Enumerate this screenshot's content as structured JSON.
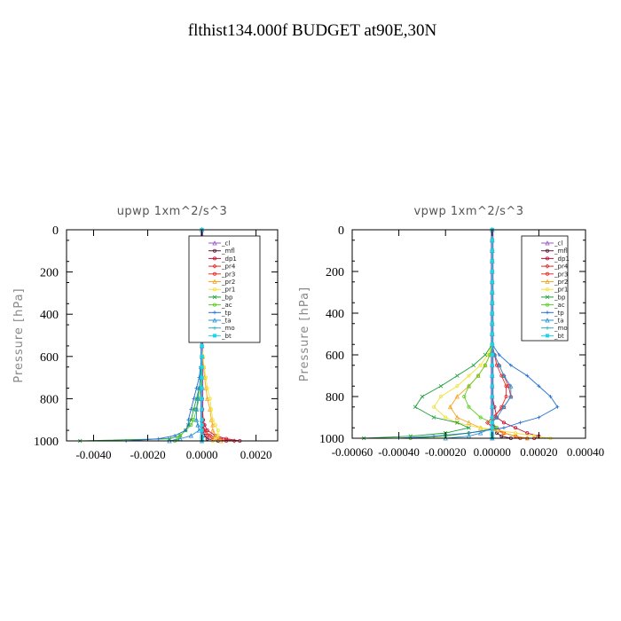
{
  "figure": {
    "title": "flthist134.000f  BUDGET at90E,30N"
  },
  "legend_entries": [
    "_cl",
    "_mfl",
    "_dp1",
    "_pr4",
    "_pr3",
    "_pr2",
    "_pr1",
    "_bp",
    "_ac",
    "_tp",
    "_ta",
    "_mo",
    "_bt"
  ],
  "colors": {
    "_cl": "#9b59c7",
    "_mfl": "#5a1a3a",
    "_dp1": "#c0103a",
    "_pr4": "#e02828",
    "_pr3": "#ee2a2a",
    "_pr2": "#f5a623",
    "_pr1": "#f2e23a",
    "_bp": "#1c9e3a",
    "_ac": "#5ad020",
    "_tp": "#1f6fd6",
    "_ta": "#2a8fd0",
    "_mo": "#2ab0c0",
    "_bt": "#19d7e8"
  },
  "chart_data": [
    {
      "type": "line",
      "title": "upwp   1xm^2/s^3",
      "ylabel": "Pressure  [hPa]",
      "xlabel": "",
      "xlim": [
        -0.005,
        0.0028
      ],
      "ylim": [
        1000,
        0
      ],
      "y_inverted": true,
      "xticks": [
        -0.004,
        -0.002,
        0.0,
        0.002
      ],
      "xtick_labels": [
        "-0.0040",
        "-0.0020",
        "0.0000",
        "0.0020"
      ],
      "yticks": [
        0,
        200,
        400,
        600,
        800,
        1000
      ],
      "ytick_labels": [
        "0",
        "200",
        "400",
        "600",
        "800",
        "1000"
      ],
      "legend_position": "top-right",
      "grid": false,
      "y": [
        0,
        50,
        100,
        150,
        200,
        250,
        300,
        350,
        400,
        450,
        500,
        550,
        600,
        650,
        700,
        750,
        800,
        850,
        900,
        925,
        950,
        975,
        990,
        1000
      ],
      "series": [
        {
          "name": "_cl",
          "values": [
            0,
            0,
            0,
            0,
            0,
            0,
            0,
            0,
            0,
            0,
            0,
            0,
            0,
            0,
            0,
            0,
            0,
            0,
            0,
            0,
            0,
            0,
            0,
            0
          ]
        },
        {
          "name": "_mfl",
          "values": [
            0,
            0,
            0,
            0,
            0,
            0,
            0,
            0,
            0,
            0,
            0,
            0,
            0,
            0,
            0,
            0,
            0,
            0,
            0,
            3e-05,
            5e-05,
            0.0001,
            0.0002,
            0.0006
          ]
        },
        {
          "name": "_dp1",
          "values": [
            0,
            0,
            0,
            0,
            0,
            0,
            0,
            0,
            0,
            0,
            0,
            0,
            0,
            0,
            0,
            0,
            1e-05,
            2e-05,
            5e-05,
            0.0001,
            0.0002,
            0.0005,
            0.0009,
            0.0014
          ]
        },
        {
          "name": "_pr4",
          "values": [
            0,
            0,
            0,
            0,
            0,
            0,
            0,
            0,
            0,
            0,
            0,
            0,
            0,
            0,
            0,
            0,
            0,
            0,
            2e-05,
            5e-05,
            0.0001,
            0.0003,
            0.0007,
            0.0012
          ]
        },
        {
          "name": "_pr3",
          "values": [
            0,
            0,
            0,
            0,
            0,
            0,
            0,
            0,
            0,
            0,
            0,
            0,
            0,
            0,
            0,
            0,
            0,
            0,
            1e-05,
            3e-05,
            8e-05,
            0.0002,
            0.0004,
            0.0009
          ]
        },
        {
          "name": "_pr2",
          "values": [
            0,
            0,
            0,
            0,
            0,
            0,
            0,
            0,
            0,
            0,
            0,
            0,
            3e-05,
            6e-05,
            0.0001,
            0.00015,
            0.0002,
            0.0003,
            0.00035,
            0.0004,
            0.0004,
            0.0005,
            0.0006,
            0.0007
          ]
        },
        {
          "name": "_pr1",
          "values": [
            0,
            0,
            0,
            0,
            0,
            0,
            0,
            0,
            0,
            0,
            0,
            0,
            4e-05,
            8e-05,
            0.00015,
            0.0002,
            0.0003,
            0.00035,
            0.0004,
            0.0005,
            0.0006,
            0.0006,
            0.0005,
            0.0004
          ]
        },
        {
          "name": "_bp",
          "values": [
            0,
            0,
            0,
            0,
            0,
            0,
            0,
            0,
            0,
            0,
            0,
            0,
            0,
            0,
            -5e-05,
            -0.0001,
            -0.0002,
            -0.0003,
            -0.0004,
            -0.0005,
            -0.0006,
            -0.0008,
            -0.0012,
            -0.0045
          ]
        },
        {
          "name": "_ac",
          "values": [
            0,
            0,
            0,
            0,
            0,
            0,
            0,
            0,
            0,
            0,
            0,
            0,
            0,
            0,
            -2e-05,
            -5e-05,
            -0.0001,
            -0.0002,
            -0.0003,
            -0.0004,
            -0.0006,
            -0.0008,
            -0.0009,
            -0.001
          ]
        },
        {
          "name": "_tp",
          "values": [
            0,
            0,
            0,
            0,
            0,
            0,
            0,
            0,
            0,
            0,
            0,
            0,
            0,
            -5e-05,
            -0.0001,
            -0.0002,
            -0.0003,
            -0.0004,
            -0.0005,
            -0.0005,
            -0.0006,
            -0.001,
            -0.0016,
            -0.0028
          ]
        },
        {
          "name": "_ta",
          "values": [
            0,
            0,
            0,
            0,
            0,
            0,
            0,
            0,
            0,
            0,
            0,
            0,
            0,
            -3e-05,
            -6e-05,
            -0.0001,
            -0.00015,
            -0.0002,
            -0.0002,
            -0.00015,
            -0.0001,
            -0.0004,
            -0.0008,
            -0.0012
          ]
        },
        {
          "name": "_mo",
          "values": [
            0,
            0,
            0,
            0,
            0,
            0,
            0,
            0,
            0,
            0,
            0,
            0,
            0,
            0,
            0,
            0,
            0,
            0,
            0,
            0,
            0,
            0,
            0,
            0
          ]
        },
        {
          "name": "_bt",
          "values": [
            0,
            0,
            0,
            0,
            0,
            0,
            0,
            0,
            0,
            0,
            0,
            0,
            0,
            0,
            0,
            0,
            0,
            0,
            0,
            0,
            0,
            0,
            0,
            0
          ]
        }
      ]
    },
    {
      "type": "line",
      "title": "vpwp   1xm^2/s^3",
      "ylabel": "Pressure  [hPa]",
      "xlabel": "",
      "xlim": [
        -0.0006,
        0.0004
      ],
      "ylim": [
        1000,
        0
      ],
      "y_inverted": true,
      "xticks": [
        -0.0006,
        -0.0004,
        -0.0002,
        0.0,
        0.0002,
        0.0004
      ],
      "xtick_labels": [
        "-0.00060",
        "-0.00040",
        "-0.00020",
        "0.00000",
        "0.00020",
        "0.00040"
      ],
      "yticks": [
        0,
        200,
        400,
        600,
        800,
        1000
      ],
      "ytick_labels": [
        "0",
        "200",
        "400",
        "600",
        "800",
        "1000"
      ],
      "legend_position": "top-right",
      "grid": false,
      "y": [
        0,
        50,
        100,
        150,
        200,
        250,
        300,
        350,
        400,
        450,
        500,
        550,
        600,
        650,
        700,
        750,
        800,
        850,
        900,
        925,
        950,
        975,
        990,
        1000
      ],
      "series": [
        {
          "name": "_cl",
          "values": [
            0,
            0,
            0,
            0,
            0,
            0,
            0,
            0,
            0,
            0,
            0,
            0,
            0,
            0,
            0,
            0,
            0,
            0,
            0,
            0,
            0,
            0,
            0,
            0
          ]
        },
        {
          "name": "_mfl",
          "values": [
            0,
            0,
            0,
            0,
            0,
            0,
            0,
            0,
            0,
            0,
            0,
            0,
            0,
            0,
            0,
            0,
            0,
            0,
            0,
            0,
            1e-05,
            2e-05,
            4e-05,
            8e-05
          ]
        },
        {
          "name": "_dp1",
          "values": [
            0,
            0,
            0,
            0,
            0,
            0,
            0,
            0,
            0,
            0,
            0,
            0,
            0,
            0,
            0,
            0,
            0,
            1e-05,
            2e-05,
            5e-05,
            0.0001,
            0.00015,
            0.0002,
            0.00018
          ]
        },
        {
          "name": "_pr4",
          "values": [
            0,
            0,
            0,
            0,
            0,
            0,
            0,
            0,
            0,
            0,
            0,
            0,
            1e-05,
            3e-05,
            5e-05,
            7e-05,
            8e-05,
            5e-05,
            0,
            -2e-05,
            0,
            5e-05,
            0.0001,
            0.00015
          ]
        },
        {
          "name": "_pr3",
          "values": [
            0,
            0,
            0,
            0,
            0,
            0,
            0,
            0,
            0,
            0,
            0,
            0,
            1e-05,
            2e-05,
            4e-05,
            6e-05,
            6e-05,
            4e-05,
            1e-05,
            0,
            2e-05,
            5e-05,
            0.0001,
            0.00012
          ]
        },
        {
          "name": "_pr2",
          "values": [
            0,
            0,
            0,
            0,
            0,
            0,
            0,
            0,
            0,
            0,
            0,
            0,
            -1e-05,
            -3e-05,
            -6e-05,
            -0.0001,
            -0.00015,
            -0.00018,
            -0.00015,
            -0.0001,
            -5e-05,
            5e-05,
            0.0001,
            0.00015
          ]
        },
        {
          "name": "_pr1",
          "values": [
            0,
            0,
            0,
            0,
            0,
            0,
            0,
            0,
            0,
            0,
            0,
            0,
            -2e-05,
            -5e-05,
            -0.0001,
            -0.00015,
            -0.00022,
            -0.00025,
            -0.0002,
            -0.00015,
            -5e-05,
            0.0001,
            0.00018,
            0.00025
          ]
        },
        {
          "name": "_bp",
          "values": [
            0,
            0,
            0,
            0,
            0,
            0,
            0,
            0,
            0,
            0,
            0,
            0,
            -3e-05,
            -8e-05,
            -0.00015,
            -0.00022,
            -0.0003,
            -0.00033,
            -0.00025,
            -0.00015,
            -0.0001,
            -0.0002,
            -0.00035,
            -0.00055
          ]
        },
        {
          "name": "_ac",
          "values": [
            0,
            0,
            0,
            0,
            0,
            0,
            0,
            0,
            0,
            0,
            0,
            0,
            -1e-05,
            -3e-05,
            -6e-05,
            -0.0001,
            -0.00012,
            -0.0001,
            -5e-05,
            0,
            2e-05,
            -0.0001,
            -0.0002,
            -0.00035
          ]
        },
        {
          "name": "_tp",
          "values": [
            0,
            0,
            0,
            0,
            0,
            0,
            0,
            0,
            0,
            0,
            0,
            0,
            3e-05,
            8e-05,
            0.00015,
            0.0002,
            0.00025,
            0.00028,
            0.0002,
            0.00012,
            5e-05,
            -0.0001,
            -0.00025,
            -0.0004
          ]
        },
        {
          "name": "_ta",
          "values": [
            0,
            0,
            0,
            0,
            0,
            0,
            0,
            0,
            0,
            0,
            0,
            0,
            1e-05,
            3e-05,
            5e-05,
            8e-05,
            8e-05,
            5e-05,
            2e-05,
            0,
            0,
            -5e-05,
            -0.0001,
            -0.0002
          ]
        },
        {
          "name": "_mo",
          "values": [
            0,
            0,
            0,
            0,
            0,
            0,
            0,
            0,
            0,
            0,
            0,
            0,
            0,
            0,
            0,
            0,
            0,
            0,
            0,
            0,
            0,
            0,
            0,
            0
          ]
        },
        {
          "name": "_bt",
          "values": [
            0,
            0,
            0,
            0,
            0,
            0,
            0,
            0,
            0,
            0,
            0,
            0,
            0,
            0,
            0,
            0,
            0,
            0,
            0,
            0,
            0,
            0,
            0,
            0
          ]
        }
      ]
    }
  ]
}
